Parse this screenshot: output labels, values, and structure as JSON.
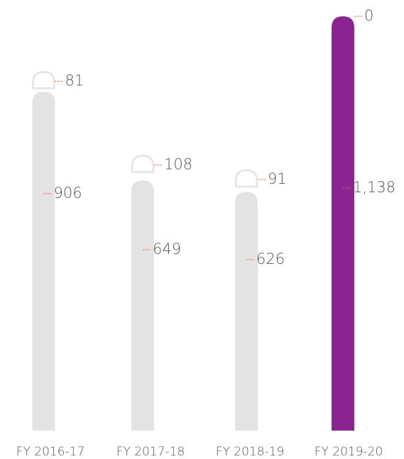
{
  "chart_data": {
    "type": "bar",
    "stacked": true,
    "categories": [
      "FY 2016-17",
      "FY 2017-18",
      "FY 2018-19",
      "FY 2019-20"
    ],
    "series": [
      {
        "values": [
          906,
          649,
          626,
          1138
        ],
        "value_labels": [
          "906",
          "649",
          "626",
          "1,138"
        ]
      },
      {
        "values": [
          81,
          108,
          91,
          0
        ],
        "value_labels": [
          "81",
          "108",
          "91",
          "0"
        ]
      }
    ],
    "colors": {
      "base_fill": "#e3e3e3",
      "top_outline": "#e3e3e3",
      "highlight": "#8b2390",
      "leader": "#e8663d",
      "label_text": "#555555"
    },
    "highlight_category": "FY 2019-20",
    "ylim": [
      0,
      1138
    ]
  }
}
